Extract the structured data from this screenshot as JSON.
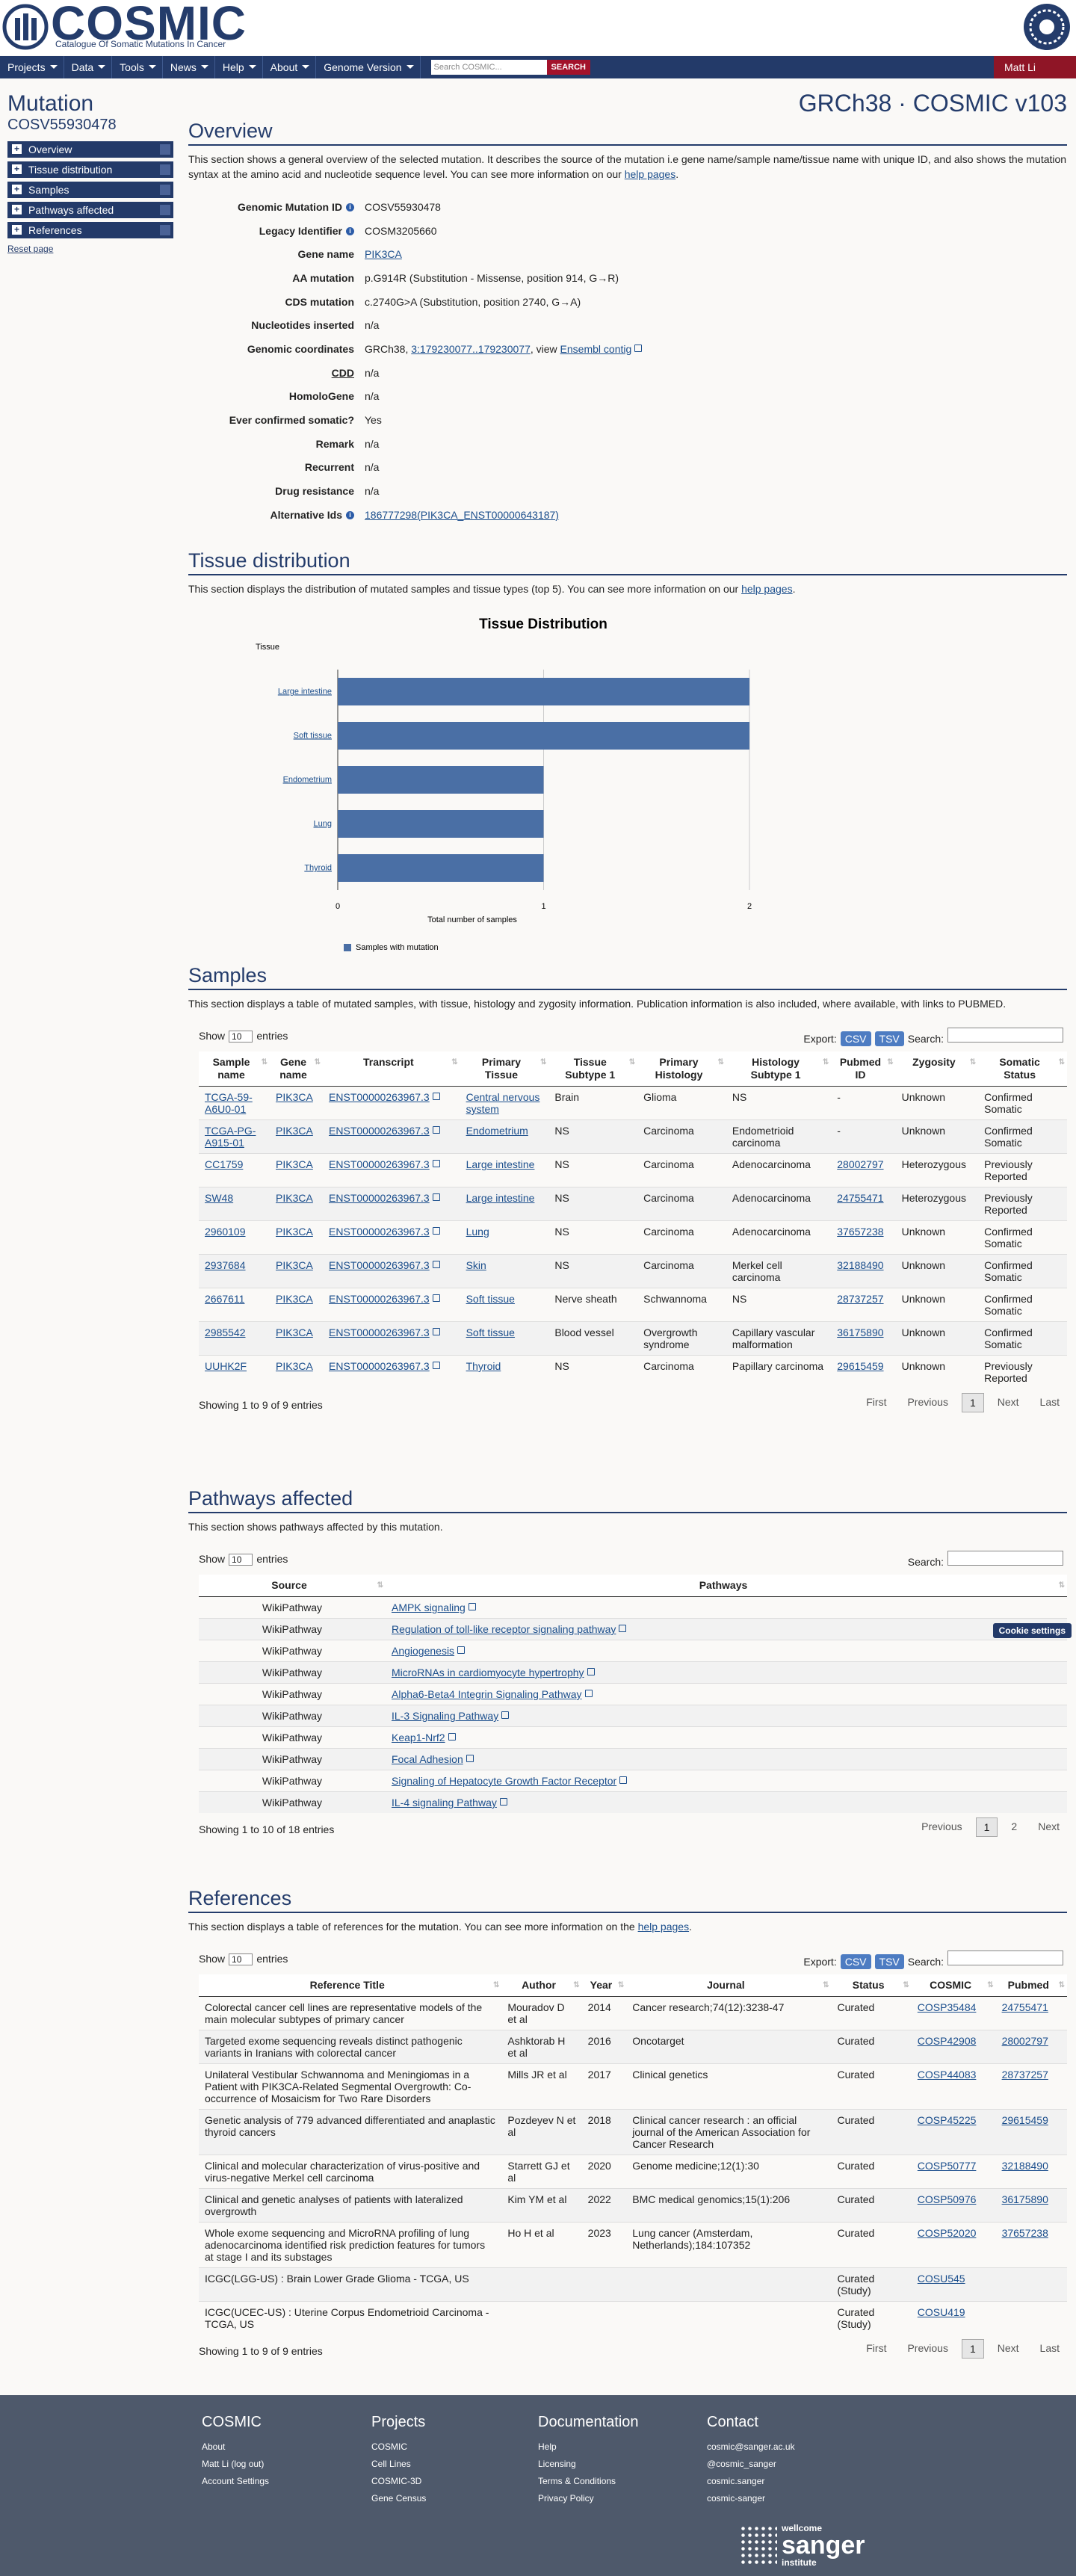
{
  "header": {
    "logo": "COSMIC",
    "tagline": "Catalogue Of Somatic Mutations In Cancer"
  },
  "nav": {
    "items": [
      "Projects",
      "Data",
      "Tools",
      "News",
      "Help",
      "About",
      "Genome Version"
    ],
    "search_placeholder": "Search COSMIC...",
    "search_button": "SEARCH",
    "user": "Matt Li"
  },
  "sidebar": {
    "title": "Mutation",
    "id": "COSV55930478",
    "links": [
      "Overview",
      "Tissue distribution",
      "Samples",
      "Pathways affected",
      "References"
    ],
    "reset": "Reset page"
  },
  "build": "GRCh38 · COSMIC v103",
  "overview": {
    "heading": "Overview",
    "intro": "This section shows a general overview of the selected mutation. It describes the source of the mutation i.e gene name/sample name/tissue name with unique ID, and also shows the mutation syntax at the amino acid and nucleotide sequence level. You can see more information on our ",
    "intro_link": "help pages",
    "intro_end": ".",
    "fields": [
      {
        "label": "Genomic Mutation ID",
        "info": true,
        "value": [
          "COSV55930478"
        ]
      },
      {
        "label": "Legacy Identifier",
        "info": true,
        "value": [
          "COSM3205660"
        ]
      },
      {
        "label": "Gene name",
        "value": [
          {
            "link": "PIK3CA"
          }
        ]
      },
      {
        "label": "AA mutation",
        "value": [
          "p.G914R (Substitution - Missense, position 914, G→R)"
        ]
      },
      {
        "label": "CDS mutation",
        "value": [
          "c.2740G>A (Substitution, position 2740, G→A)"
        ]
      },
      {
        "label": "Nucleotides inserted",
        "value": [
          "n/a"
        ]
      },
      {
        "label": "Genomic coordinates",
        "value": [
          "GRCh38, ",
          {
            "link": "3:179230077..179230077"
          },
          ", view ",
          {
            "link": "Ensembl contig",
            "external": true
          }
        ]
      },
      {
        "label": "CDD",
        "underline": true,
        "value": [
          "n/a"
        ]
      },
      {
        "label": "HomoloGene",
        "value": [
          "n/a"
        ]
      },
      {
        "label": "Ever confirmed somatic?",
        "value": [
          "Yes"
        ]
      },
      {
        "label": "Remark",
        "value": [
          "n/a"
        ]
      },
      {
        "label": "Recurrent",
        "value": [
          "n/a"
        ]
      },
      {
        "label": "Drug resistance",
        "value": [
          "n/a"
        ]
      },
      {
        "label": "Alternative Ids",
        "info": true,
        "value": [
          {
            "link": "186777298(PIK3CA_ENST00000643187)"
          }
        ]
      }
    ]
  },
  "tissue": {
    "heading": "Tissue distribution",
    "intro": "This section displays the distribution of mutated samples and tissue types (top 5). You can see more information on our ",
    "intro_link": "help pages",
    "intro_end": "."
  },
  "chart_data": {
    "type": "bar",
    "orientation": "horizontal",
    "title": "Tissue Distribution",
    "y_label": "Tissue",
    "x_label": "Total number of samples",
    "categories": [
      "Large intestine",
      "Soft tissue",
      "Endometrium",
      "Lung",
      "Thyroid"
    ],
    "series": [
      {
        "name": "Samples with mutation",
        "color": "#4a6fa5",
        "values": [
          2,
          2,
          1,
          1,
          1
        ]
      }
    ],
    "xlim": [
      0,
      2
    ],
    "xticks": [
      0,
      1,
      2
    ],
    "grid": true
  },
  "samples": {
    "heading": "Samples",
    "intro": "This section displays a table of mutated samples, with tissue, histology and zygosity information. Publication information is also included, where available, with links to PUBMED.",
    "show": "Show",
    "length": "10",
    "entries": "entries",
    "export": "Export:",
    "csv": "CSV",
    "tsv": "TSV",
    "search": "Search:",
    "headers": [
      "Sample name",
      "Gene name",
      "Transcript",
      "Primary Tissue",
      "Tissue Subtype 1",
      "Primary Histology",
      "Histology Subtype 1",
      "Pubmed ID",
      "Zygosity",
      "Somatic Status"
    ],
    "rows": [
      [
        "TCGA-59-A6U0-01",
        "PIK3CA",
        "ENST00000263967.3",
        "Central nervous system",
        "Brain",
        "Glioma",
        "NS",
        "-",
        "Unknown",
        "Confirmed Somatic"
      ],
      [
        "TCGA-PG-A915-01",
        "PIK3CA",
        "ENST00000263967.3",
        "Endometrium",
        "NS",
        "Carcinoma",
        "Endometrioid carcinoma",
        "-",
        "Unknown",
        "Confirmed Somatic"
      ],
      [
        "CC1759",
        "PIK3CA",
        "ENST00000263967.3",
        "Large intestine",
        "NS",
        "Carcinoma",
        "Adenocarcinoma",
        "28002797",
        "Heterozygous",
        "Previously Reported"
      ],
      [
        "SW48",
        "PIK3CA",
        "ENST00000263967.3",
        "Large intestine",
        "NS",
        "Carcinoma",
        "Adenocarcinoma",
        "24755471",
        "Heterozygous",
        "Previously Reported"
      ],
      [
        "2960109",
        "PIK3CA",
        "ENST00000263967.3",
        "Lung",
        "NS",
        "Carcinoma",
        "Adenocarcinoma",
        "37657238",
        "Unknown",
        "Confirmed Somatic"
      ],
      [
        "2937684",
        "PIK3CA",
        "ENST00000263967.3",
        "Skin",
        "NS",
        "Carcinoma",
        "Merkel cell carcinoma",
        "32188490",
        "Unknown",
        "Confirmed Somatic"
      ],
      [
        "2667611",
        "PIK3CA",
        "ENST00000263967.3",
        "Soft tissue",
        "Nerve sheath",
        "Schwannoma",
        "NS",
        "28737257",
        "Unknown",
        "Confirmed Somatic"
      ],
      [
        "2985542",
        "PIK3CA",
        "ENST00000263967.3",
        "Soft tissue",
        "Blood vessel",
        "Overgrowth syndrome",
        "Capillary vascular malformation",
        "36175890",
        "Unknown",
        "Confirmed Somatic"
      ],
      [
        "UUHK2F",
        "PIK3CA",
        "ENST00000263967.3",
        "Thyroid",
        "NS",
        "Carcinoma",
        "Papillary carcinoma",
        "29615459",
        "Unknown",
        "Previously Reported"
      ]
    ],
    "info": "Showing 1 to 9 of 9 entries",
    "pages": [
      "First",
      "Previous",
      "1",
      "Next",
      "Last"
    ]
  },
  "pathways": {
    "heading": "Pathways affected",
    "intro": "This section shows pathways affected by this mutation.",
    "show": "Show",
    "length": "10",
    "entries": "entries",
    "search": "Search:",
    "headers": [
      "Source",
      "Pathways"
    ],
    "rows": [
      [
        "WikiPathway",
        "AMPK signaling"
      ],
      [
        "WikiPathway",
        "Regulation of toll-like receptor signaling pathway"
      ],
      [
        "WikiPathway",
        "Angiogenesis"
      ],
      [
        "WikiPathway",
        "MicroRNAs in cardiomyocyte hypertrophy"
      ],
      [
        "WikiPathway",
        "Alpha6-Beta4 Integrin Signaling Pathway"
      ],
      [
        "WikiPathway",
        "IL-3 Signaling Pathway"
      ],
      [
        "WikiPathway",
        "Keap1-Nrf2"
      ],
      [
        "WikiPathway",
        "Focal Adhesion"
      ],
      [
        "WikiPathway",
        "Signaling of Hepatocyte Growth Factor Receptor"
      ],
      [
        "WikiPathway",
        "IL-4 signaling Pathway"
      ]
    ],
    "info": "Showing 1 to 10 of 18 entries",
    "pages": [
      "Previous",
      "1",
      "2",
      "Next"
    ],
    "cookie": "Cookie settings"
  },
  "references": {
    "heading": "References",
    "intro": "This section displays a table of references for the mutation. You can see more information on the ",
    "intro_link": "help pages",
    "intro_end": ".",
    "show": "Show",
    "length": "10",
    "entries": "entries",
    "export": "Export:",
    "csv": "CSV",
    "tsv": "TSV",
    "search": "Search:",
    "headers": [
      "Reference Title",
      "Author",
      "Year",
      "Journal",
      "Status",
      "COSMIC",
      "Pubmed"
    ],
    "rows": [
      [
        "Colorectal cancer cell lines are representative models of the main molecular subtypes of primary cancer",
        "Mouradov D et al",
        "2014",
        "Cancer research;74(12):3238-47",
        "Curated",
        "COSP35484",
        "24755471"
      ],
      [
        "Targeted exome sequencing reveals distinct pathogenic variants in Iranians with colorectal cancer",
        "Ashktorab H et al",
        "2016",
        "Oncotarget",
        "Curated",
        "COSP42908",
        "28002797"
      ],
      [
        "Unilateral Vestibular Schwannoma and Meningiomas in a Patient with PIK3CA-Related Segmental Overgrowth: Co-occurrence of Mosaicism for Two Rare Disorders",
        "Mills JR et al",
        "2017",
        "Clinical genetics",
        "Curated",
        "COSP44083",
        "28737257"
      ],
      [
        "Genetic analysis of 779 advanced differentiated and anaplastic thyroid cancers",
        "Pozdeyev N et al",
        "2018",
        "Clinical cancer research : an official journal of the American Association for Cancer Research",
        "Curated",
        "COSP45225",
        "29615459"
      ],
      [
        "Clinical and molecular characterization of virus-positive and virus-negative Merkel cell carcinoma",
        "Starrett GJ et al",
        "2020",
        "Genome medicine;12(1):30",
        "Curated",
        "COSP50777",
        "32188490"
      ],
      [
        "Clinical and genetic analyses of patients with lateralized overgrowth",
        "Kim YM et al",
        "2022",
        "BMC medical genomics;15(1):206",
        "Curated",
        "COSP50976",
        "36175890"
      ],
      [
        "Whole exome sequencing and MicroRNA profiling of lung adenocarcinoma identified risk prediction features for tumors at stage I and its substages",
        "Ho H et al",
        "2023",
        "Lung cancer (Amsterdam, Netherlands);184:107352",
        "Curated",
        "COSP52020",
        "37657238"
      ],
      [
        "ICGC(LGG-US) : Brain Lower Grade Glioma - TCGA, US",
        null,
        null,
        null,
        "Curated (Study)",
        "COSU545",
        null
      ],
      [
        "ICGC(UCEC-US) : Uterine Corpus Endometrioid Carcinoma - TCGA, US",
        null,
        null,
        null,
        "Curated (Study)",
        "COSU419",
        null
      ]
    ],
    "info": "Showing 1 to 9 of 9 entries",
    "pages": [
      "First",
      "Previous",
      "1",
      "Next",
      "Last"
    ]
  },
  "footer": {
    "columns": [
      {
        "title": "COSMIC",
        "links": [
          "About",
          "Matt Li (log out)",
          "Account Settings"
        ]
      },
      {
        "title": "Projects",
        "links": [
          "COSMIC",
          "Cell Lines",
          "COSMIC-3D",
          "Gene Census"
        ]
      },
      {
        "title": "Documentation",
        "links": [
          "Help",
          "Licensing",
          "Terms & Conditions",
          "Privacy Policy"
        ]
      },
      {
        "title": "Contact",
        "links": [
          "cosmic@sanger.ac.uk",
          "@cosmic_sanger",
          "cosmic.sanger",
          "cosmic-sanger"
        ]
      }
    ],
    "sanger": [
      "wellcome",
      "sanger",
      "institute"
    ]
  }
}
